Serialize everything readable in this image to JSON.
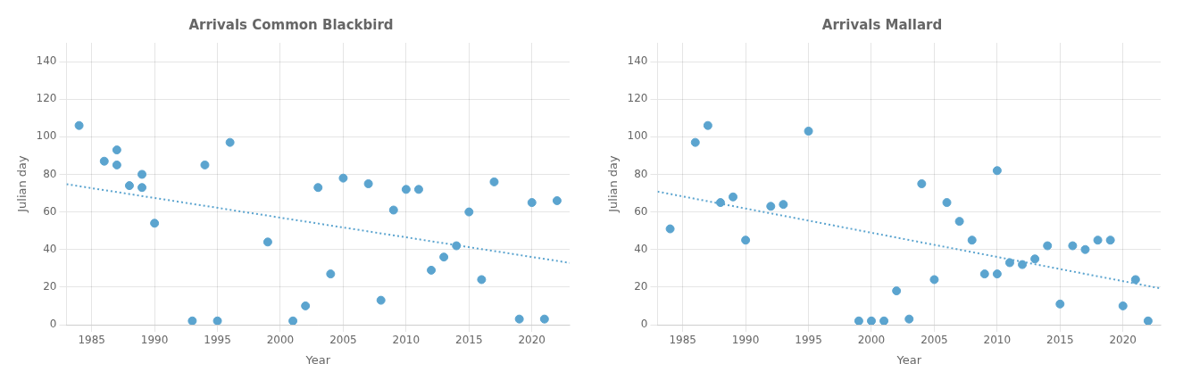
{
  "chart_data": [
    {
      "type": "scatter",
      "title": "Arrivals Common Blackbird",
      "x_label": "Year",
      "y_label": "Julian day",
      "xlim": [
        1983,
        2023
      ],
      "ylim": [
        0,
        150
      ],
      "xticks": [
        1985,
        1990,
        1995,
        2000,
        2005,
        2010,
        2015,
        2020
      ],
      "yticks": [
        0,
        20,
        40,
        60,
        80,
        100,
        120,
        140
      ],
      "grid": true,
      "series": [
        {
          "type": "scatter",
          "color": "#5BA4CF",
          "marker": "circle",
          "x": [
            1984,
            1986,
            1987,
            1987,
            1988,
            1989,
            1989,
            1990,
            1993,
            1994,
            1995,
            1996,
            1999,
            2001,
            2002,
            2003,
            2004,
            2005,
            2007,
            2008,
            2009,
            2010,
            2011,
            2012,
            2013,
            2014,
            2015,
            2016,
            2017,
            2019,
            2020,
            2021,
            2022
          ],
          "values": [
            106,
            87,
            85,
            93,
            74,
            73,
            80,
            54,
            2,
            85,
            2,
            97,
            44,
            2,
            10,
            73,
            27,
            78,
            75,
            13,
            61,
            72,
            72,
            29,
            36,
            42,
            60,
            24,
            76,
            3,
            65,
            3,
            66
          ]
        },
        {
          "type": "line",
          "color": "#5BA4CF",
          "line_style": "dotted",
          "x": [
            1983,
            2023
          ],
          "values": [
            74.7562,
            32.8998
          ]
        }
      ]
    },
    {
      "type": "scatter",
      "title": "Arrivals Mallard",
      "x_label": "Year",
      "y_label": "Julian day",
      "xlim": [
        1983,
        2023
      ],
      "ylim": [
        0,
        150
      ],
      "xticks": [
        1985,
        1990,
        1995,
        2000,
        2005,
        2010,
        2015,
        2020
      ],
      "yticks": [
        0,
        20,
        40,
        60,
        80,
        100,
        120,
        140
      ],
      "grid": true,
      "series": [
        {
          "type": "scatter",
          "color": "#5BA4CF",
          "marker": "circle",
          "x": [
            1984,
            1986,
            1987,
            1988,
            1989,
            1990,
            1992,
            1993,
            1995,
            1999,
            2000,
            2001,
            2002,
            2003,
            2004,
            2005,
            2006,
            2007,
            2008,
            2009,
            2010,
            2010,
            2011,
            2012,
            2013,
            2014,
            2015,
            2016,
            2017,
            2018,
            2019,
            2020,
            2021,
            2022
          ],
          "values": [
            51,
            97,
            106,
            65,
            68,
            45,
            63,
            64,
            103,
            2,
            2,
            2,
            18,
            3,
            75,
            24,
            65,
            55,
            45,
            27,
            27,
            82,
            33,
            32,
            35,
            42,
            11,
            42,
            40,
            45,
            45,
            10,
            24,
            2
          ]
        },
        {
          "type": "line",
          "color": "#5BA4CF",
          "line_style": "dotted",
          "x": [
            1983,
            2023
          ],
          "values": [
            70.8395,
            19.3049
          ]
        }
      ]
    }
  ]
}
